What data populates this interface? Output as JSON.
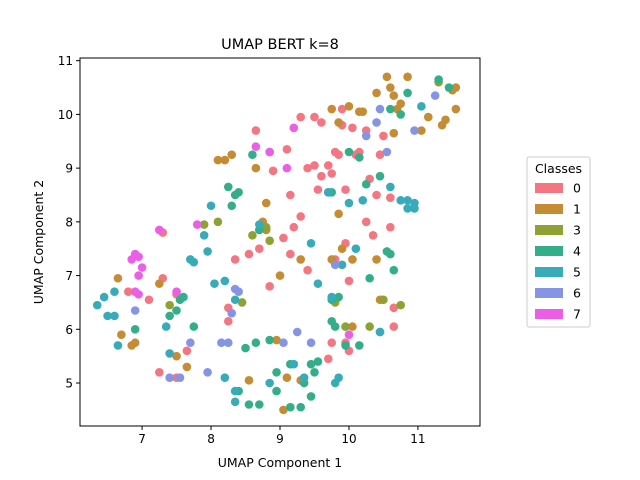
{
  "chart_data": {
    "type": "scatter",
    "title": "UMAP BERT k=8",
    "xlabel": "UMAP Component 1",
    "ylabel": "UMAP Component 2",
    "xlim": [
      6.1,
      11.9
    ],
    "ylim": [
      4.2,
      11.05
    ],
    "xticks": [
      7,
      8,
      9,
      10,
      11
    ],
    "yticks": [
      5,
      6,
      7,
      8,
      9,
      10,
      11
    ],
    "grid": false,
    "legend": {
      "title": "Classes",
      "placement": "right"
    },
    "series": [
      {
        "name": "0",
        "color": "#f37682",
        "points": [
          [
            6.8,
            6.7
          ],
          [
            7.1,
            6.55
          ],
          [
            7.3,
            6.95
          ],
          [
            7.25,
            5.2
          ],
          [
            7.5,
            5.1
          ],
          [
            7.65,
            5.6
          ],
          [
            7.5,
            6.65
          ],
          [
            7.3,
            7.8
          ],
          [
            8.35,
            7.3
          ],
          [
            8.25,
            6.4
          ],
          [
            8.25,
            6.15
          ],
          [
            8.55,
            7.4
          ],
          [
            8.7,
            7.5
          ],
          [
            8.85,
            6.8
          ],
          [
            9.05,
            7.7
          ],
          [
            9.2,
            7.9
          ],
          [
            9.3,
            8.1
          ],
          [
            9.15,
            8.5
          ],
          [
            8.9,
            8.95
          ],
          [
            9.1,
            9.35
          ],
          [
            8.65,
            9.7
          ],
          [
            9.4,
            9.0
          ],
          [
            9.5,
            9.05
          ],
          [
            9.6,
            8.85
          ],
          [
            9.55,
            8.6
          ],
          [
            9.7,
            8.55
          ],
          [
            9.75,
            8.9
          ],
          [
            9.8,
            9.3
          ],
          [
            9.85,
            9.25
          ],
          [
            9.5,
            9.95
          ],
          [
            9.6,
            9.85
          ],
          [
            9.9,
            9.8
          ],
          [
            10.1,
            9.25
          ],
          [
            10.15,
            9.3
          ],
          [
            10.05,
            9.75
          ],
          [
            10.25,
            9.7
          ],
          [
            10.45,
            9.25
          ],
          [
            10.5,
            9.6
          ],
          [
            10.3,
            8.8
          ],
          [
            10.4,
            8.5
          ],
          [
            10.6,
            8.45
          ],
          [
            10.25,
            8.0
          ],
          [
            10.35,
            7.75
          ],
          [
            9.95,
            8.6
          ],
          [
            9.95,
            7.6
          ],
          [
            10.0,
            6.9
          ],
          [
            9.8,
            7.3
          ],
          [
            9.4,
            7.1
          ],
          [
            9.15,
            7.4
          ],
          [
            9.75,
            5.75
          ],
          [
            9.95,
            5.75
          ],
          [
            9.7,
            5.45
          ],
          [
            10.0,
            5.6
          ],
          [
            9.9,
            10.1
          ],
          [
            10.65,
            6.05
          ],
          [
            10.6,
            7.9
          ],
          [
            10.65,
            6.4
          ],
          [
            9.7,
            9.05
          ],
          [
            9.3,
            9.95
          ]
        ]
      },
      {
        "name": "1",
        "color": "#c68c33",
        "points": [
          [
            6.65,
            6.95
          ],
          [
            6.7,
            5.9
          ],
          [
            6.85,
            5.7
          ],
          [
            6.9,
            5.75
          ],
          [
            7.25,
            6.85
          ],
          [
            7.5,
            5.5
          ],
          [
            7.65,
            5.3
          ],
          [
            8.1,
            9.15
          ],
          [
            8.2,
            9.15
          ],
          [
            8.3,
            9.25
          ],
          [
            8.65,
            9.0
          ],
          [
            8.8,
            8.35
          ],
          [
            8.55,
            5.05
          ],
          [
            8.95,
            5.8
          ],
          [
            9.05,
            4.5
          ],
          [
            9.1,
            5.1
          ],
          [
            9.3,
            5.05
          ],
          [
            9.3,
            7.3
          ],
          [
            9.75,
            7.3
          ],
          [
            9.9,
            7.5
          ],
          [
            9.85,
            8.15
          ],
          [
            10.05,
            7.3
          ],
          [
            9.85,
            9.85
          ],
          [
            9.75,
            10.1
          ],
          [
            10.15,
            10.05
          ],
          [
            10.2,
            10.05
          ],
          [
            10.4,
            10.4
          ],
          [
            10.55,
            10.7
          ],
          [
            10.6,
            10.5
          ],
          [
            10.65,
            10.35
          ],
          [
            10.7,
            10.1
          ],
          [
            10.65,
            9.65
          ],
          [
            10.75,
            10.2
          ],
          [
            10.85,
            10.7
          ],
          [
            11.05,
            9.7
          ],
          [
            11.15,
            9.95
          ],
          [
            11.35,
            9.8
          ],
          [
            11.4,
            9.9
          ],
          [
            11.55,
            10.1
          ],
          [
            11.5,
            10.45
          ],
          [
            11.55,
            10.5
          ],
          [
            10.4,
            7.3
          ],
          [
            10.45,
            6.55
          ],
          [
            10.05,
            6.05
          ],
          [
            8.75,
            8.0
          ],
          [
            9.0,
            7.0
          ],
          [
            8.8,
            7.85
          ],
          [
            10.0,
            10.15
          ]
        ]
      },
      {
        "name": "3",
        "color": "#8ea133",
        "points": [
          [
            7.4,
            6.45
          ],
          [
            7.9,
            7.95
          ],
          [
            8.1,
            8.0
          ],
          [
            8.45,
            6.5
          ],
          [
            8.6,
            7.75
          ],
          [
            8.85,
            7.65
          ],
          [
            8.8,
            7.9
          ],
          [
            9.8,
            6.5
          ],
          [
            9.95,
            6.05
          ],
          [
            10.3,
            6.05
          ],
          [
            10.5,
            6.55
          ],
          [
            10.75,
            6.45
          ],
          [
            11.3,
            10.6
          ]
        ]
      },
      {
        "name": "4",
        "color": "#34ae8a",
        "points": [
          [
            6.9,
            6.0
          ],
          [
            7.4,
            6.25
          ],
          [
            7.5,
            6.35
          ],
          [
            7.75,
            6.05
          ],
          [
            7.55,
            6.55
          ],
          [
            7.6,
            6.6
          ],
          [
            8.25,
            8.65
          ],
          [
            8.35,
            8.5
          ],
          [
            8.3,
            8.3
          ],
          [
            8.6,
            9.25
          ],
          [
            8.85,
            9.3
          ],
          [
            8.7,
            7.85
          ],
          [
            8.5,
            5.65
          ],
          [
            8.65,
            5.75
          ],
          [
            8.85,
            5.8
          ],
          [
            8.95,
            5.2
          ],
          [
            8.7,
            4.6
          ],
          [
            8.95,
            4.85
          ],
          [
            9.15,
            4.55
          ],
          [
            9.3,
            4.55
          ],
          [
            9.35,
            5.0
          ],
          [
            9.45,
            4.75
          ],
          [
            9.45,
            5.35
          ],
          [
            9.5,
            5.2
          ],
          [
            9.55,
            5.4
          ],
          [
            9.8,
            6.05
          ],
          [
            9.75,
            6.55
          ],
          [
            9.85,
            6.6
          ],
          [
            9.95,
            5.7
          ],
          [
            10.15,
            5.7
          ],
          [
            10.3,
            6.95
          ],
          [
            10.45,
            5.95
          ],
          [
            10.55,
            7.45
          ],
          [
            10.6,
            7.4
          ],
          [
            10.65,
            7.1
          ],
          [
            9.75,
            8.55
          ],
          [
            10.0,
            9.3
          ],
          [
            10.15,
            9.2
          ],
          [
            10.25,
            8.7
          ],
          [
            10.45,
            8.85
          ],
          [
            10.6,
            10.1
          ],
          [
            10.75,
            10.0
          ],
          [
            10.85,
            10.4
          ],
          [
            11.3,
            10.65
          ],
          [
            11.45,
            10.5
          ],
          [
            8.4,
            4.85
          ],
          [
            8.55,
            4.6
          ],
          [
            9.15,
            5.35
          ],
          [
            8.4,
            8.55
          ],
          [
            9.75,
            6.15
          ]
        ]
      },
      {
        "name": "5",
        "color": "#38abbb",
        "points": [
          [
            6.35,
            6.45
          ],
          [
            6.45,
            6.6
          ],
          [
            6.5,
            6.25
          ],
          [
            6.6,
            6.7
          ],
          [
            6.6,
            6.25
          ],
          [
            6.65,
            5.7
          ],
          [
            7.35,
            6.05
          ],
          [
            7.4,
            5.55
          ],
          [
            7.7,
            7.3
          ],
          [
            7.75,
            7.25
          ],
          [
            7.9,
            7.75
          ],
          [
            7.95,
            7.45
          ],
          [
            8.0,
            8.3
          ],
          [
            8.05,
            6.85
          ],
          [
            8.2,
            6.9
          ],
          [
            8.35,
            6.55
          ],
          [
            8.2,
            5.1
          ],
          [
            8.35,
            4.85
          ],
          [
            8.35,
            4.65
          ],
          [
            8.7,
            7.95
          ],
          [
            8.85,
            5.0
          ],
          [
            9.2,
            5.35
          ],
          [
            9.35,
            5.1
          ],
          [
            9.45,
            7.6
          ],
          [
            9.55,
            6.85
          ],
          [
            9.7,
            8.55
          ],
          [
            9.75,
            6.6
          ],
          [
            9.8,
            5.0
          ],
          [
            9.85,
            5.1
          ],
          [
            9.9,
            7.2
          ],
          [
            10.0,
            8.35
          ],
          [
            10.1,
            7.5
          ],
          [
            10.2,
            8.4
          ],
          [
            10.45,
            5.95
          ],
          [
            10.6,
            8.65
          ],
          [
            10.75,
            8.4
          ],
          [
            10.85,
            8.4
          ],
          [
            10.95,
            8.25
          ],
          [
            10.95,
            8.35
          ],
          [
            11.05,
            10.15
          ],
          [
            10.85,
            8.25
          ]
        ]
      },
      {
        "name": "6",
        "color": "#8594e5",
        "points": [
          [
            6.9,
            6.35
          ],
          [
            7.4,
            5.1
          ],
          [
            7.55,
            5.1
          ],
          [
            7.7,
            5.75
          ],
          [
            7.95,
            5.2
          ],
          [
            8.15,
            5.75
          ],
          [
            8.25,
            5.75
          ],
          [
            8.3,
            6.3
          ],
          [
            8.35,
            6.75
          ],
          [
            8.4,
            6.7
          ],
          [
            9.05,
            5.75
          ],
          [
            9.25,
            5.95
          ],
          [
            9.45,
            5.75
          ],
          [
            9.8,
            7.2
          ],
          [
            10.25,
            9.6
          ],
          [
            10.4,
            9.85
          ],
          [
            10.45,
            10.1
          ],
          [
            10.55,
            9.3
          ],
          [
            10.95,
            9.7
          ],
          [
            11.25,
            10.35
          ]
        ]
      },
      {
        "name": "7",
        "color": "#ed5ee8",
        "points": [
          [
            6.85,
            7.3
          ],
          [
            6.9,
            7.4
          ],
          [
            6.95,
            7.0
          ],
          [
            6.95,
            7.35
          ],
          [
            7.0,
            7.15
          ],
          [
            7.25,
            7.85
          ],
          [
            6.9,
            6.7
          ],
          [
            6.95,
            6.65
          ],
          [
            7.5,
            6.7
          ],
          [
            7.8,
            7.95
          ],
          [
            8.65,
            9.4
          ],
          [
            8.85,
            9.3
          ],
          [
            9.2,
            9.75
          ],
          [
            10.0,
            5.9
          ],
          [
            9.1,
            9.0
          ]
        ]
      }
    ]
  }
}
